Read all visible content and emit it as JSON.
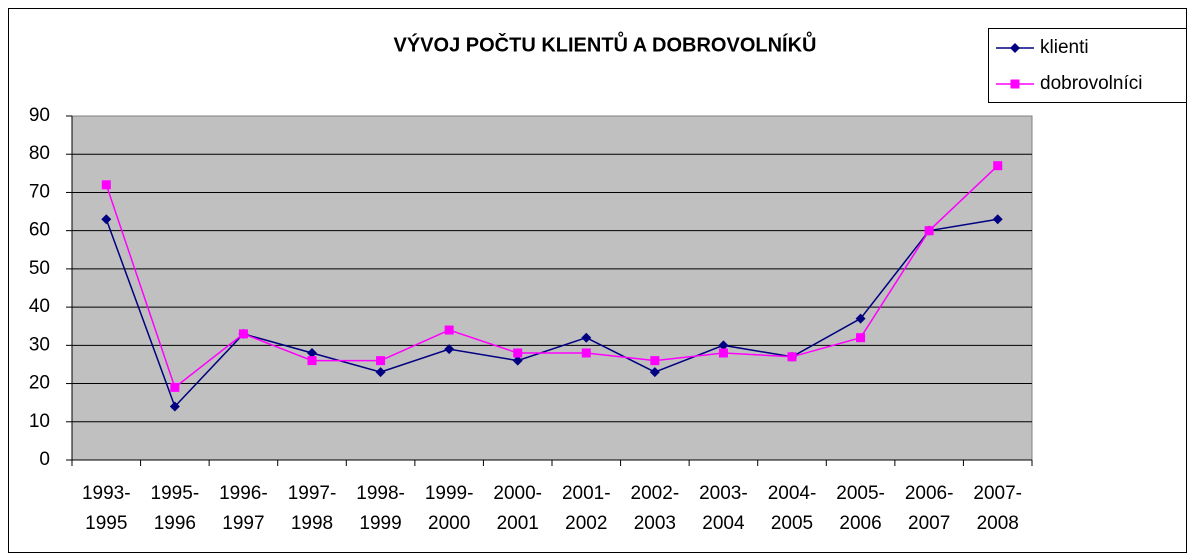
{
  "chart_data": {
    "type": "line",
    "title": "VÝVOJ POČTU KLIENTŮ A DOBROVOLNÍKŮ",
    "categories": [
      "1993-1995",
      "1995-1996",
      "1996-1997",
      "1997-1998",
      "1998-1999",
      "1999-2000",
      "2000-2001",
      "2001-2002",
      "2002-2003",
      "2003-2004",
      "2004-2005",
      "2005-2006",
      "2006-2007",
      "2007-2008"
    ],
    "series": [
      {
        "name": "klienti",
        "color": "#000080",
        "marker": "diamond",
        "values": [
          63,
          14,
          33,
          28,
          23,
          29,
          26,
          32,
          23,
          30,
          27,
          37,
          60,
          63
        ]
      },
      {
        "name": "dobrovolníci",
        "color": "#ff00ff",
        "marker": "square",
        "values": [
          72,
          19,
          33,
          26,
          26,
          34,
          28,
          28,
          26,
          28,
          27,
          32,
          60,
          77
        ]
      }
    ],
    "ylim": [
      0,
      90
    ],
    "yticks": [
      0,
      10,
      20,
      30,
      40,
      50,
      60,
      70,
      80,
      90
    ],
    "grid": true,
    "legend": "top-right"
  }
}
